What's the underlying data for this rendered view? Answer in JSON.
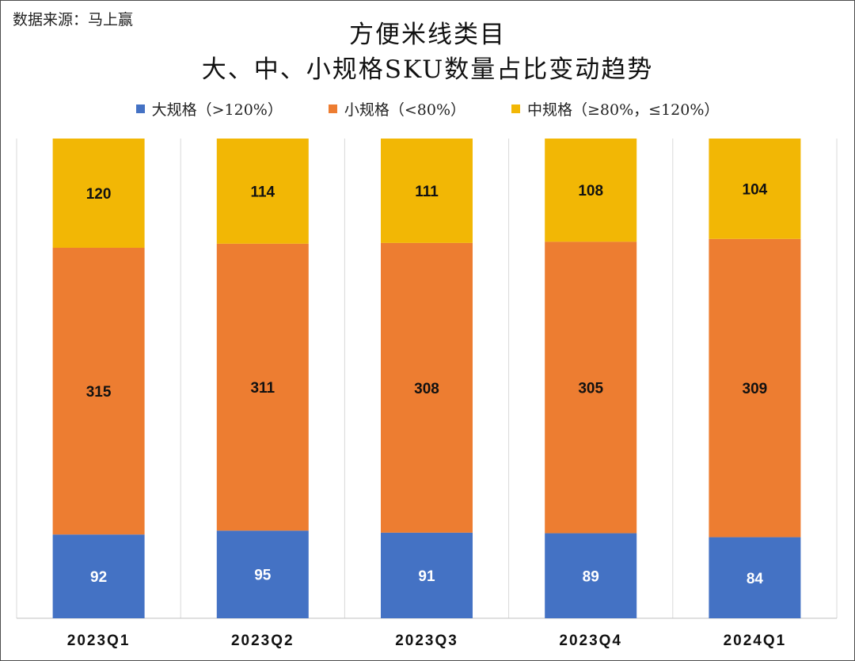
{
  "source_note": "数据来源：马上赢",
  "chart_data": {
    "type": "bar",
    "stacked": true,
    "title_line1": "方便米线类目",
    "title_line2": "大、中、小规格SKU数量占比变动趋势",
    "categories": [
      "2023Q1",
      "2023Q2",
      "2023Q3",
      "2023Q4",
      "2024Q1"
    ],
    "series": [
      {
        "name": "大规格（>120%）",
        "color": "#4472C4",
        "label_color": "#ffffff",
        "values": [
          92,
          95,
          91,
          89,
          84
        ]
      },
      {
        "name": "小规格（<80%）",
        "color": "#ED7D31",
        "label_color": "#111111",
        "values": [
          315,
          311,
          308,
          305,
          309
        ]
      },
      {
        "name": "中规格（≥80%，≤120%）",
        "color": "#F2B705",
        "label_color": "#111111",
        "values": [
          120,
          114,
          111,
          108,
          104
        ]
      }
    ],
    "legend_position": "top",
    "grid": "vertical category dividers",
    "normalized_to_100_percent": true
  }
}
